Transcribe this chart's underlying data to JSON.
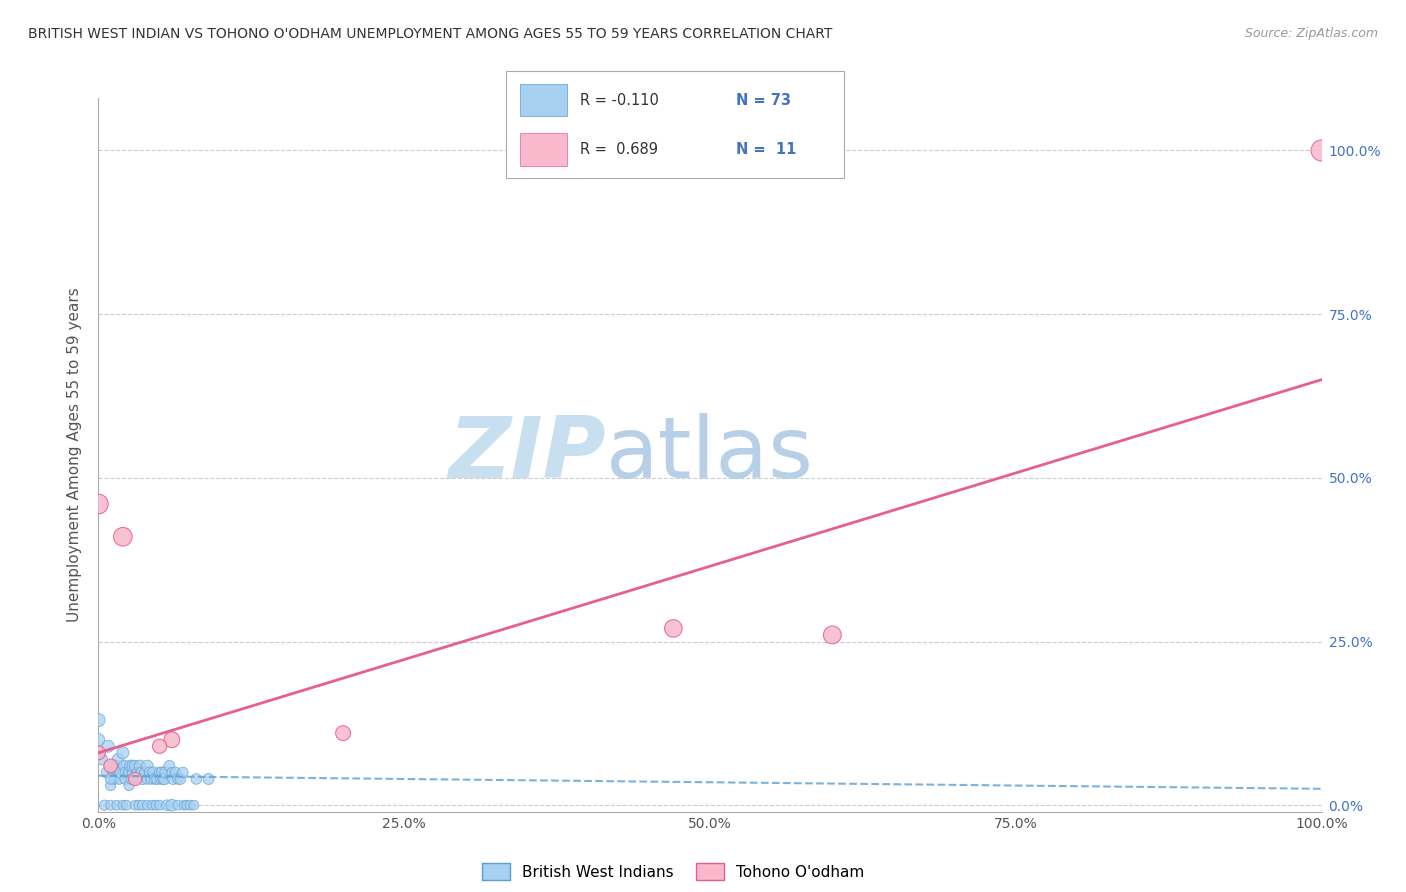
{
  "title": "BRITISH WEST INDIAN VS TOHONO O'ODHAM UNEMPLOYMENT AMONG AGES 55 TO 59 YEARS CORRELATION CHART",
  "source": "Source: ZipAtlas.com",
  "ylabel": "Unemployment Among Ages 55 to 59 years",
  "xlim": [
    0,
    1.0
  ],
  "ylim": [
    -0.01,
    1.08
  ],
  "ytick_labels": [
    "0.0%",
    "25.0%",
    "50.0%",
    "75.0%",
    "100.0%"
  ],
  "ytick_values": [
    0.0,
    0.25,
    0.5,
    0.75,
    1.0
  ],
  "xtick_labels": [
    "0.0%",
    "25.0%",
    "50.0%",
    "75.0%",
    "100.0%"
  ],
  "xtick_values": [
    0.0,
    0.25,
    0.5,
    0.75,
    1.0
  ],
  "watermark_zip": "ZIP",
  "watermark_atlas": "atlas",
  "blue_color": "#a8d0f0",
  "blue_edge_color": "#5a9fd4",
  "pink_color": "#f9b8cc",
  "pink_edge_color": "#e8608a",
  "blue_scatter_x": [
    0.0,
    0.0,
    0.0,
    0.003,
    0.005,
    0.007,
    0.008,
    0.01,
    0.01,
    0.012,
    0.012,
    0.013,
    0.015,
    0.015,
    0.016,
    0.017,
    0.018,
    0.02,
    0.02,
    0.021,
    0.022,
    0.022,
    0.023,
    0.025,
    0.025,
    0.026,
    0.027,
    0.028,
    0.028,
    0.03,
    0.03,
    0.03,
    0.032,
    0.033,
    0.034,
    0.035,
    0.036,
    0.036,
    0.038,
    0.04,
    0.04,
    0.04,
    0.042,
    0.043,
    0.044,
    0.045,
    0.046,
    0.047,
    0.048,
    0.05,
    0.05,
    0.051,
    0.052,
    0.053,
    0.054,
    0.055,
    0.056,
    0.058,
    0.06,
    0.06,
    0.061,
    0.063,
    0.065,
    0.065,
    0.067,
    0.069,
    0.07,
    0.072,
    0.075,
    0.078,
    0.08,
    0.09,
    0.01
  ],
  "blue_scatter_y": [
    0.1,
    0.13,
    0.08,
    0.07,
    0.0,
    0.05,
    0.09,
    0.03,
    0.0,
    0.06,
    0.05,
    0.04,
    0.06,
    0.0,
    0.07,
    0.04,
    0.05,
    0.0,
    0.08,
    0.06,
    0.05,
    0.04,
    0.0,
    0.05,
    0.03,
    0.06,
    0.04,
    0.05,
    0.06,
    0.04,
    0.0,
    0.06,
    0.05,
    0.0,
    0.06,
    0.05,
    0.0,
    0.04,
    0.05,
    0.04,
    0.0,
    0.06,
    0.05,
    0.04,
    0.0,
    0.05,
    0.04,
    0.0,
    0.04,
    0.05,
    0.0,
    0.04,
    0.05,
    0.04,
    0.04,
    0.05,
    0.0,
    0.06,
    0.05,
    0.0,
    0.04,
    0.05,
    0.0,
    0.04,
    0.04,
    0.05,
    0.0,
    0.0,
    0.0,
    0.0,
    0.04,
    0.04,
    0.04
  ],
  "blue_trend_x": [
    0.0,
    1.0
  ],
  "blue_trend_y": [
    0.045,
    0.025
  ],
  "pink_scatter_x": [
    0.0,
    0.02,
    0.06,
    0.47,
    0.6,
    1.0,
    0.0,
    0.01,
    0.03,
    0.05,
    0.2
  ],
  "pink_scatter_y": [
    0.46,
    0.41,
    0.1,
    0.27,
    0.26,
    1.0,
    0.08,
    0.06,
    0.04,
    0.09,
    0.11
  ],
  "pink_trend_x": [
    0.0,
    1.0
  ],
  "pink_trend_y": [
    0.08,
    0.65
  ],
  "blue_sizes": [
    80,
    90,
    70,
    65,
    55,
    70,
    75,
    55,
    50,
    75,
    65,
    60,
    65,
    50,
    70,
    60,
    65,
    50,
    75,
    65,
    60,
    60,
    50,
    65,
    55,
    70,
    60,
    60,
    70,
    58,
    50,
    65,
    62,
    50,
    70,
    58,
    50,
    65,
    62,
    58,
    50,
    70,
    62,
    58,
    50,
    65,
    58,
    50,
    62,
    58,
    50,
    58,
    62,
    65,
    68,
    70,
    58,
    62,
    50,
    70,
    62,
    58,
    50,
    58,
    62,
    58,
    50,
    45,
    50,
    50,
    58,
    62,
    58
  ],
  "pink_sizes": [
    200,
    180,
    130,
    160,
    165,
    230,
    100,
    95,
    90,
    105,
    115
  ]
}
